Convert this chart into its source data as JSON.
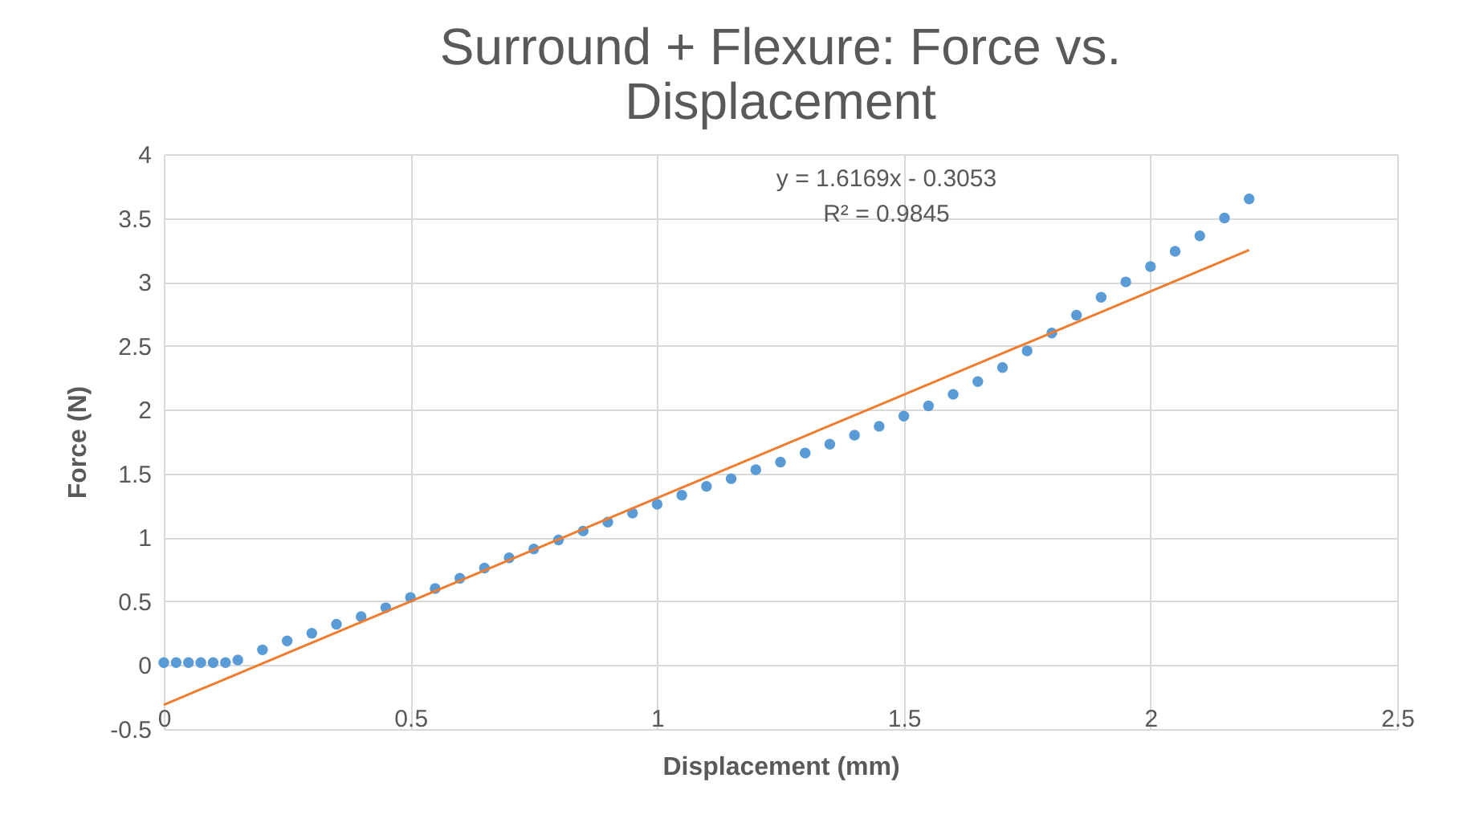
{
  "chart_data": {
    "type": "scatter",
    "title": [
      "Surround  + Flexure: Force vs.",
      "Displacement"
    ],
    "xlabel": "Displacement (mm)",
    "ylabel": "Force (N)",
    "xlim": [
      0,
      2.5
    ],
    "xticks": [
      0,
      0.5,
      1,
      1.5,
      2,
      2.5
    ],
    "ylim": [
      -0.5,
      4
    ],
    "yticks": [
      -0.5,
      0,
      0.5,
      1,
      1.5,
      2,
      2.5,
      3,
      3.5,
      4
    ],
    "grid": true,
    "marker": "circle",
    "annotations": [
      "y = 1.6169x - 0.3053",
      "R² = 0.9845"
    ],
    "series": [
      {
        "color": "#5b9bd5",
        "x": [
          0,
          0.025,
          0.05,
          0.075,
          0.1,
          0.125,
          0.15,
          0.2,
          0.25,
          0.3,
          0.35,
          0.4,
          0.45,
          0.5,
          0.55,
          0.6,
          0.65,
          0.7,
          0.75,
          0.8,
          0.85,
          0.9,
          0.95,
          1.0,
          1.05,
          1.1,
          1.15,
          1.2,
          1.25,
          1.3,
          1.35,
          1.4,
          1.45,
          1.5,
          1.55,
          1.6,
          1.65,
          1.7,
          1.75,
          1.8,
          1.85,
          1.9,
          1.95,
          2.0,
          2.05,
          2.1,
          2.15,
          2.2
        ],
        "values": [
          0.02,
          0.02,
          0.02,
          0.02,
          0.02,
          0.02,
          0.04,
          0.12,
          0.19,
          0.25,
          0.32,
          0.38,
          0.45,
          0.53,
          0.6,
          0.68,
          0.76,
          0.84,
          0.91,
          0.98,
          1.05,
          1.12,
          1.19,
          1.26,
          1.33,
          1.4,
          1.46,
          1.53,
          1.59,
          1.66,
          1.73,
          1.8,
          1.87,
          1.95,
          2.03,
          2.12,
          2.22,
          2.33,
          2.46,
          2.6,
          2.74,
          2.88,
          3.0,
          3.12,
          3.24,
          3.36,
          3.5,
          3.65
        ]
      },
      {
        "type": "line",
        "marker": "none",
        "color": "#ed7d31",
        "x": [
          0,
          2.2
        ],
        "values": [
          -0.31,
          3.25
        ]
      }
    ]
  }
}
